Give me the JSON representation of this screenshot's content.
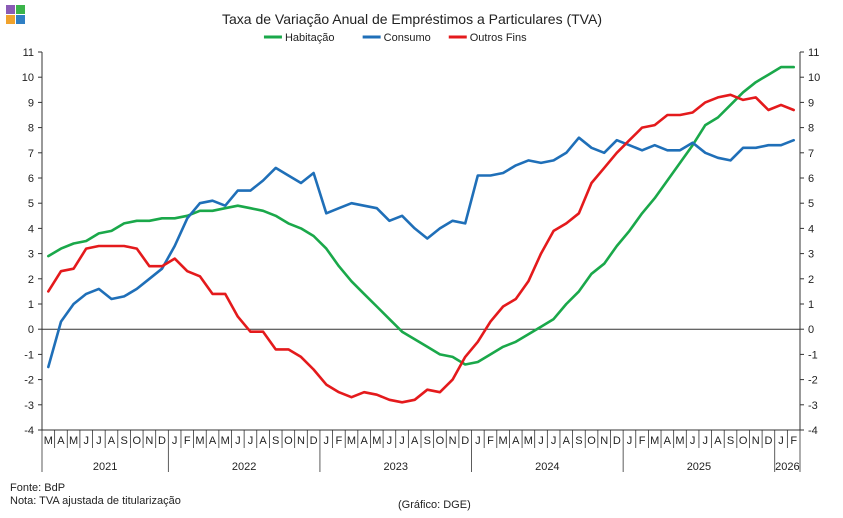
{
  "logo": {
    "colors": [
      "#8a5bb5",
      "#3bb44a",
      "#f0a22c",
      "#2f7fc4"
    ]
  },
  "source": "Fonte: BdP",
  "note": "Nota: TVA ajustada de titularização",
  "credit": "(Gráfico: DGE)",
  "chart_data": {
    "type": "line",
    "title": "Taxa de Variação Anual de Empréstimos a Particulares (TVA)",
    "xlabel": "",
    "ylabel": "",
    "ylim": [
      -4,
      11
    ],
    "yticks": [
      -4,
      -3,
      -2,
      -1,
      0,
      1,
      2,
      3,
      4,
      5,
      6,
      7,
      8,
      9,
      10,
      11
    ],
    "grid": false,
    "legend_position": "top",
    "dual_y_axis": true,
    "x": [
      "2021-03",
      "2021-04",
      "2021-05",
      "2021-06",
      "2021-07",
      "2021-08",
      "2021-09",
      "2021-10",
      "2021-11",
      "2021-12",
      "2022-01",
      "2022-02",
      "2022-03",
      "2022-04",
      "2022-05",
      "2022-06",
      "2022-07",
      "2022-08",
      "2022-09",
      "2022-10",
      "2022-11",
      "2022-12",
      "2023-01",
      "2023-02",
      "2023-03",
      "2023-04",
      "2023-05",
      "2023-06",
      "2023-07",
      "2023-08",
      "2023-09",
      "2023-10",
      "2023-11",
      "2023-12",
      "2024-01",
      "2024-02",
      "2024-03",
      "2024-04",
      "2024-05",
      "2024-06",
      "2024-07",
      "2024-08",
      "2024-09",
      "2024-10",
      "2024-11",
      "2024-12",
      "2025-01",
      "2025-02",
      "2025-03",
      "2025-04",
      "2025-05",
      "2025-06",
      "2025-07",
      "2025-08",
      "2025-09",
      "2025-10",
      "2025-11",
      "2025-12",
      "2026-01",
      "2026-02"
    ],
    "month_labels": [
      "M",
      "A",
      "M",
      "J",
      "J",
      "A",
      "S",
      "O",
      "N",
      "D",
      "J",
      "F",
      "M",
      "A",
      "M",
      "J",
      "J",
      "A",
      "S",
      "O",
      "N",
      "D",
      "J",
      "F",
      "M",
      "A",
      "M",
      "J",
      "J",
      "A",
      "S",
      "O",
      "N",
      "D",
      "J",
      "F",
      "M",
      "A",
      "M",
      "J",
      "J",
      "A",
      "S",
      "O",
      "N",
      "D",
      "J",
      "F",
      "M",
      "A",
      "M",
      "J",
      "J",
      "A",
      "S",
      "O",
      "N",
      "D",
      "J",
      "F"
    ],
    "years": [
      {
        "label": "2021",
        "start": 0,
        "end": 9
      },
      {
        "label": "2022",
        "start": 10,
        "end": 21
      },
      {
        "label": "2023",
        "start": 22,
        "end": 33
      },
      {
        "label": "2024",
        "start": 34,
        "end": 45
      },
      {
        "label": "2025",
        "start": 46,
        "end": 57
      },
      {
        "label": "2026",
        "start": 58,
        "end": 59
      }
    ],
    "series": [
      {
        "name": "Habitação",
        "color": "#1aa84a",
        "values": [
          2.9,
          3.2,
          3.4,
          3.5,
          3.8,
          3.9,
          4.2,
          4.3,
          4.3,
          4.4,
          4.4,
          4.5,
          4.7,
          4.7,
          4.8,
          4.9,
          4.8,
          4.7,
          4.5,
          4.2,
          4.0,
          3.7,
          3.2,
          2.5,
          1.9,
          1.4,
          0.9,
          0.4,
          -0.1,
          -0.4,
          -0.7,
          -1.0,
          -1.1,
          -1.4,
          -1.3,
          -1.0,
          -0.7,
          -0.5,
          -0.2,
          0.1,
          0.4,
          1.0,
          1.5,
          2.2,
          2.6,
          3.3,
          3.9,
          4.6,
          5.2,
          5.9,
          6.6,
          7.3,
          8.1,
          8.4,
          8.9,
          9.4,
          9.8,
          10.1,
          10.4,
          10.4
        ]
      },
      {
        "name": "Consumo",
        "color": "#1f6fb8",
        "values": [
          -1.5,
          0.3,
          1.0,
          1.4,
          1.6,
          1.2,
          1.3,
          1.6,
          2.0,
          2.4,
          3.3,
          4.4,
          5.0,
          5.1,
          4.9,
          5.5,
          5.5,
          5.9,
          6.4,
          6.1,
          5.8,
          6.2,
          4.6,
          4.8,
          5.0,
          4.9,
          4.8,
          4.3,
          4.5,
          4.0,
          3.6,
          4.0,
          4.3,
          4.2,
          6.1,
          6.1,
          6.2,
          6.5,
          6.7,
          6.6,
          6.7,
          7.0,
          7.6,
          7.2,
          7.0,
          7.5,
          7.3,
          7.1,
          7.3,
          7.1,
          7.1,
          7.4,
          7.0,
          6.8,
          6.7,
          7.2,
          7.2,
          7.3,
          7.3,
          7.5
        ]
      },
      {
        "name": "Outros Fins",
        "color": "#e41a1c",
        "values": [
          1.5,
          2.3,
          2.4,
          3.2,
          3.3,
          3.3,
          3.3,
          3.2,
          2.5,
          2.5,
          2.8,
          2.3,
          2.1,
          1.4,
          1.4,
          0.5,
          -0.1,
          -0.1,
          -0.8,
          -0.8,
          -1.1,
          -1.6,
          -2.2,
          -2.5,
          -2.7,
          -2.5,
          -2.6,
          -2.8,
          -2.9,
          -2.8,
          -2.4,
          -2.5,
          -2.0,
          -1.1,
          -0.5,
          0.3,
          0.9,
          1.2,
          1.9,
          3.0,
          3.9,
          4.2,
          4.6,
          5.8,
          6.4,
          7.0,
          7.5,
          8.0,
          8.1,
          8.5,
          8.5,
          8.6,
          9.0,
          9.2,
          9.3,
          9.1,
          9.2,
          8.7,
          8.9,
          8.7
        ]
      }
    ]
  }
}
